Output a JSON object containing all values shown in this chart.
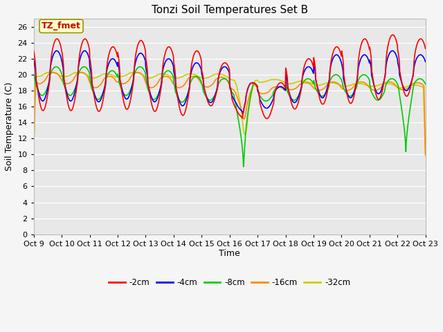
{
  "title": "Tonzi Soil Temperatures Set B",
  "xlabel": "Time",
  "ylabel": "Soil Temperature (C)",
  "ylim": [
    0,
    27
  ],
  "yticks": [
    0,
    2,
    4,
    6,
    8,
    10,
    12,
    14,
    16,
    18,
    20,
    22,
    24,
    26
  ],
  "xtick_labels": [
    "Oct 9",
    "Oct 10",
    "Oct 11",
    "Oct 12",
    "Oct 13",
    "Oct 14",
    "Oct 15",
    "Oct 16",
    "Oct 17",
    "Oct 18",
    "Oct 19",
    "Oct 20",
    "Oct 21",
    "Oct 22",
    "Oct 23"
  ],
  "legend_labels": [
    "-2cm",
    "-4cm",
    "-8cm",
    "-16cm",
    "-32cm"
  ],
  "legend_colors": [
    "#ff0000",
    "#0000ff",
    "#00cc00",
    "#ff8800",
    "#cccc00"
  ],
  "annotation_text": "TZ_fmet",
  "annotation_color": "#cc0000",
  "annotation_bg": "#ffffcc",
  "plot_bg_color": "#e8e8e8",
  "fig_bg_color": "#f5f5f5",
  "grid_color": "#ffffff",
  "title_fontsize": 11,
  "axis_fontsize": 9,
  "tick_fontsize": 8
}
